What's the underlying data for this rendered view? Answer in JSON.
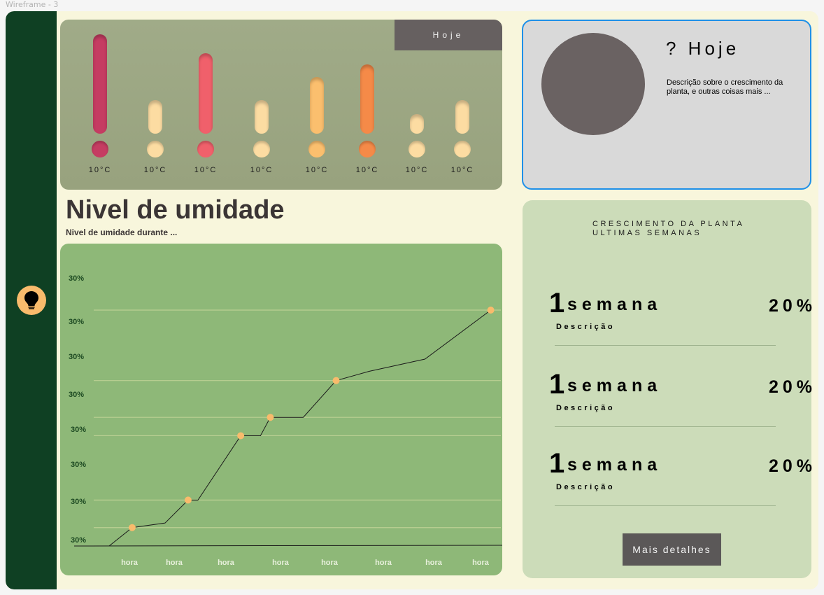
{
  "frame_label": "Wireframe - 3",
  "sidebar": {
    "icon": "lightbulb-icon",
    "accent": "#f9bb6c"
  },
  "temperature": {
    "button_label": "Hoje",
    "readings": [
      {
        "label": "10°C",
        "level": 0.95,
        "color": "#c53c62"
      },
      {
        "label": "10°C",
        "level": 0.22,
        "color": "#fcdca2"
      },
      {
        "label": "10°C",
        "level": 0.74,
        "color": "#f0606b"
      },
      {
        "label": "10°C",
        "level": 0.22,
        "color": "#fcdca2"
      },
      {
        "label": "10°C",
        "level": 0.48,
        "color": "#fbbf6e"
      },
      {
        "label": "10°C",
        "level": 0.62,
        "color": "#f58a48"
      },
      {
        "label": "10°C",
        "level": 0.06,
        "color": "#fcdca2"
      },
      {
        "label": "10°C",
        "level": 0.22,
        "color": "#fcdca2"
      }
    ]
  },
  "today": {
    "title": "? Hoje",
    "description": "Descrição sobre o crescimento da planta, e outras coisas mais ..."
  },
  "humidity": {
    "title": "Nivel de umidade",
    "subtitle": "Nivel de umidade durante  ..."
  },
  "chart_data": {
    "type": "line",
    "title": "",
    "xlabel": "",
    "ylabel": "",
    "y_tick_labels": [
      "30%",
      "30%",
      "30%",
      "30%",
      "30%",
      "30%",
      "30%",
      "30%"
    ],
    "x_tick_labels": [
      "hora",
      "hora",
      "hora",
      "hora",
      "hora",
      "hora",
      "hora",
      "hora"
    ],
    "x": [
      0,
      0.7,
      1.7,
      2.4,
      2.7,
      4.0,
      4.6,
      4.9,
      5.9,
      6.9,
      7.9,
      9.6,
      11.6
    ],
    "values": [
      0,
      0.6,
      0.75,
      1.5,
      1.5,
      3.6,
      3.6,
      4.2,
      4.2,
      5.4,
      5.7,
      6.1,
      7.7
    ],
    "markers": [
      1,
      3,
      5,
      7,
      9,
      12
    ],
    "xlim": [
      0,
      11.8
    ],
    "ylim": [
      0,
      8.5
    ],
    "marker_color": "#f9bb6c",
    "line_color": "#1a1a1a"
  },
  "growth": {
    "title": "CRESCIMENTO DA PLANTA ULTIMAS SEMANAS",
    "items": [
      {
        "number": "1",
        "unit": "semana",
        "percent": "20%",
        "description": "Descrição"
      },
      {
        "number": "1",
        "unit": "semana",
        "percent": "20%",
        "description": "Descrição"
      },
      {
        "number": "1",
        "unit": "semana",
        "percent": "20%",
        "description": "Descrição"
      }
    ],
    "button_label": "Mais detalhes"
  }
}
